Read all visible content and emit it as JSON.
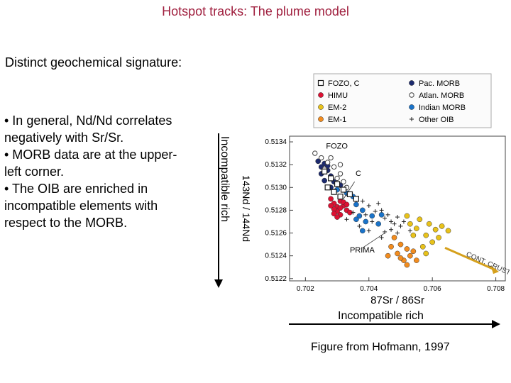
{
  "slide": {
    "title": "Hotspot tracks: The plume model",
    "subtitle": "Distinct geochemical signature:",
    "bullets": [
      "• In general, Nd/Nd correlates",
      "negatively with Sr/Sr.",
      "• MORB data are at the upper-",
      "left corner.",
      "• The OIB are enriched in",
      "incompatible elements with",
      "respect to the MORB."
    ],
    "vertical_arrow_label": "Incompatible rich",
    "horizontal_arrow_label": "Incompatible rich",
    "credit": "Figure from Hofmann, 1997"
  },
  "chart_data": {
    "type": "scatter",
    "xlabel": "87Sr / 86Sr",
    "ylabel": "143Nd / 144Nd",
    "xlim": [
      0.7015,
      0.7083
    ],
    "ylim": [
      0.51218,
      0.51345
    ],
    "x_ticks": [
      "0.702",
      "0.704",
      "0.706",
      "0.708"
    ],
    "y_ticks": [
      "0.5122",
      "0.5124",
      "0.5126",
      "0.5128",
      "0.5130",
      "0.5132",
      "0.5134"
    ],
    "legend_position": "top",
    "legend": [
      {
        "label": "FOZO, C",
        "marker": "square-open",
        "color": "#1a1a1a"
      },
      {
        "label": "HIMU",
        "marker": "circle",
        "color": "#dd1133"
      },
      {
        "label": "EM-2",
        "marker": "circle",
        "color": "#e8c21a"
      },
      {
        "label": "EM-1",
        "marker": "circle",
        "color": "#f28c1e"
      },
      {
        "label": "Pac. MORB",
        "marker": "circle",
        "color": "#1c2a6e"
      },
      {
        "label": "Atlan. MORB",
        "marker": "circle-open",
        "color": "#404040"
      },
      {
        "label": "Indian MORB",
        "marker": "circle",
        "color": "#1a73c9"
      },
      {
        "label": "Other OIB",
        "marker": "plus",
        "color": "#222222"
      }
    ],
    "annotations": [
      {
        "text": "FOZO",
        "x": 0.70265,
        "y": 0.51334
      },
      {
        "text": "C",
        "x": 0.70358,
        "y": 0.5131
      },
      {
        "text": "PRIMA",
        "x": 0.7034,
        "y": 0.51243
      },
      {
        "text": "CONT. CRUST",
        "x": 0.70705,
        "y": 0.5124
      }
    ],
    "series": [
      {
        "name": "Pac. MORB",
        "color": "#1c2a6e",
        "points": [
          [
            0.7024,
            0.51323
          ],
          [
            0.7025,
            0.51318
          ],
          [
            0.7026,
            0.51321
          ],
          [
            0.7025,
            0.51312
          ],
          [
            0.7027,
            0.51315
          ],
          [
            0.7028,
            0.5131
          ],
          [
            0.7026,
            0.51306
          ],
          [
            0.7029,
            0.51305
          ],
          [
            0.7028,
            0.513
          ],
          [
            0.703,
            0.51298
          ],
          [
            0.7027,
            0.51319
          ],
          [
            0.7031,
            0.51302
          ]
        ]
      },
      {
        "name": "Atlan. MORB",
        "color": "#404040",
        "points": [
          [
            0.7023,
            0.5133
          ],
          [
            0.7025,
            0.51326
          ],
          [
            0.7027,
            0.51322
          ],
          [
            0.7029,
            0.51318
          ],
          [
            0.7028,
            0.51326
          ],
          [
            0.7031,
            0.51312
          ],
          [
            0.703,
            0.51308
          ],
          [
            0.7026,
            0.51316
          ],
          [
            0.7032,
            0.51305
          ],
          [
            0.7033,
            0.513
          ],
          [
            0.7029,
            0.51296
          ],
          [
            0.7031,
            0.5132
          ]
        ]
      },
      {
        "name": "Indian MORB",
        "color": "#1a73c9",
        "points": [
          [
            0.703,
            0.51298
          ],
          [
            0.7033,
            0.51295
          ],
          [
            0.7035,
            0.51292
          ],
          [
            0.7036,
            0.51285
          ],
          [
            0.7038,
            0.5128
          ],
          [
            0.7037,
            0.51275
          ],
          [
            0.7039,
            0.5127
          ],
          [
            0.7041,
            0.51275
          ],
          [
            0.7043,
            0.51268
          ],
          [
            0.7036,
            0.51272
          ],
          [
            0.7038,
            0.51262
          ],
          [
            0.7044,
            0.51276
          ]
        ]
      },
      {
        "name": "HIMU",
        "color": "#dd1133",
        "points": [
          [
            0.7028,
            0.5129
          ],
          [
            0.7029,
            0.51286
          ],
          [
            0.703,
            0.51283
          ],
          [
            0.7031,
            0.51288
          ],
          [
            0.703,
            0.51279
          ],
          [
            0.7032,
            0.51284
          ],
          [
            0.7029,
            0.51281
          ],
          [
            0.7031,
            0.51276
          ],
          [
            0.7033,
            0.5128
          ],
          [
            0.7032,
            0.51287
          ],
          [
            0.7028,
            0.51284
          ],
          [
            0.7034,
            0.51278
          ],
          [
            0.703,
            0.51274
          ],
          [
            0.7033,
            0.51285
          ],
          [
            0.7031,
            0.51282
          ],
          [
            0.7029,
            0.51277
          ]
        ]
      },
      {
        "name": "EM-2",
        "color": "#e8c21a",
        "points": [
          [
            0.7052,
            0.51275
          ],
          [
            0.7056,
            0.51272
          ],
          [
            0.7059,
            0.51268
          ],
          [
            0.7055,
            0.51264
          ],
          [
            0.7061,
            0.51263
          ],
          [
            0.7058,
            0.51258
          ],
          [
            0.7063,
            0.51266
          ],
          [
            0.7054,
            0.51258
          ],
          [
            0.706,
            0.51252
          ],
          [
            0.7057,
            0.51248
          ],
          [
            0.7065,
            0.51262
          ],
          [
            0.7062,
            0.51256
          ],
          [
            0.7053,
            0.51268
          ],
          [
            0.7058,
            0.51242
          ]
        ]
      },
      {
        "name": "EM-1",
        "color": "#f28c1e",
        "points": [
          [
            0.7048,
            0.51256
          ],
          [
            0.705,
            0.5125
          ],
          [
            0.7052,
            0.51246
          ],
          [
            0.7049,
            0.51242
          ],
          [
            0.7053,
            0.5124
          ],
          [
            0.7051,
            0.51236
          ],
          [
            0.7054,
            0.51244
          ],
          [
            0.7047,
            0.51248
          ],
          [
            0.7055,
            0.51236
          ],
          [
            0.7052,
            0.51232
          ],
          [
            0.705,
            0.51238
          ],
          [
            0.7046,
            0.5124
          ]
        ]
      },
      {
        "name": "Other OIB",
        "color": "#222222",
        "points": [
          [
            0.7034,
            0.51294
          ],
          [
            0.7036,
            0.5129
          ],
          [
            0.7038,
            0.51288
          ],
          [
            0.704,
            0.51284
          ],
          [
            0.7042,
            0.51279
          ],
          [
            0.7044,
            0.5128
          ],
          [
            0.7045,
            0.51273
          ],
          [
            0.7046,
            0.51276
          ],
          [
            0.7047,
            0.5127
          ],
          [
            0.7048,
            0.51268
          ],
          [
            0.7049,
            0.51274
          ],
          [
            0.705,
            0.51266
          ],
          [
            0.7043,
            0.51286
          ],
          [
            0.7041,
            0.5127
          ],
          [
            0.7039,
            0.51276
          ],
          [
            0.7037,
            0.51266
          ],
          [
            0.7035,
            0.51278
          ],
          [
            0.7045,
            0.51261
          ],
          [
            0.7047,
            0.51263
          ],
          [
            0.7049,
            0.5126
          ],
          [
            0.7051,
            0.5127
          ],
          [
            0.7053,
            0.51262
          ],
          [
            0.7033,
            0.51272
          ],
          [
            0.704,
            0.51262
          ],
          [
            0.7044,
            0.51256
          ]
        ]
      },
      {
        "name": "FOZO, C",
        "color": "#1a1a1a",
        "points": [
          [
            0.7026,
            0.51314
          ],
          [
            0.7028,
            0.51308
          ],
          [
            0.703,
            0.51303
          ],
          [
            0.7032,
            0.51298
          ],
          [
            0.7034,
            0.51294
          ],
          [
            0.7036,
            0.5129
          ],
          [
            0.7027,
            0.513
          ],
          [
            0.7029,
            0.51296
          ],
          [
            0.7031,
            0.51292
          ]
        ]
      }
    ]
  }
}
